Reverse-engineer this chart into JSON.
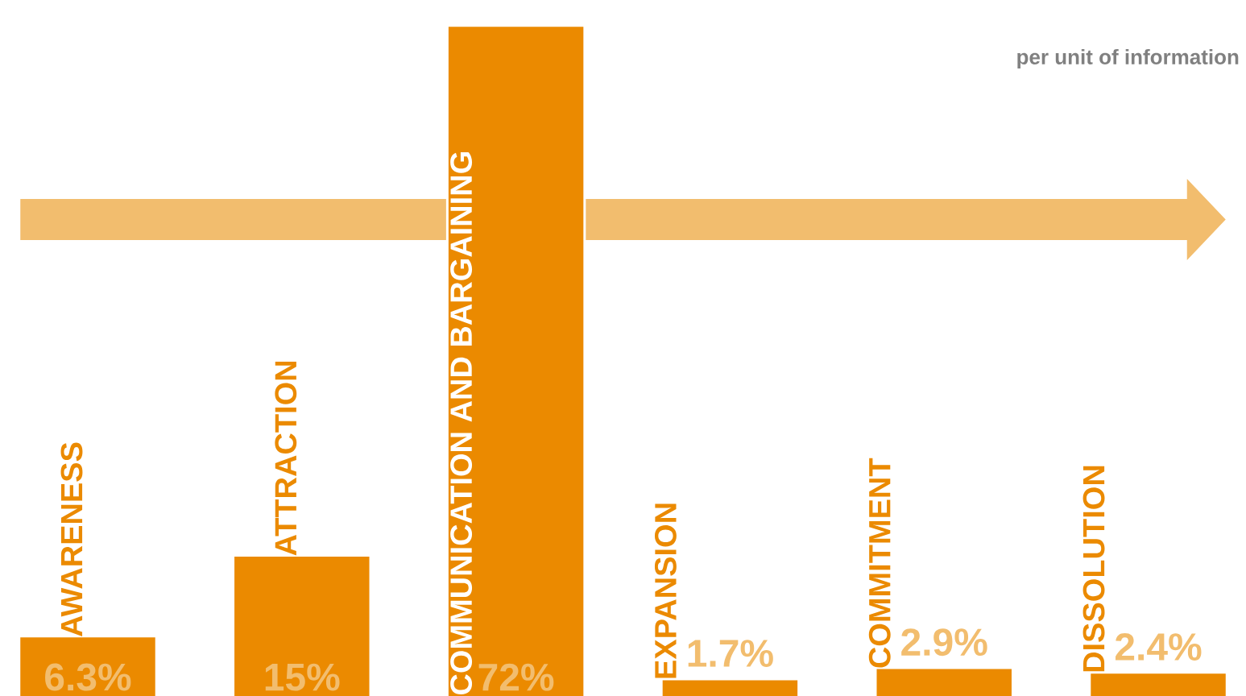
{
  "chart_data": {
    "type": "bar",
    "categories": [
      "AWARENESS",
      "ATTRACTION",
      "COMMUNICATION AND BARGAINING",
      "EXPANSION",
      "COMMITMENT",
      "DISSOLUTION"
    ],
    "values": [
      6.3,
      15,
      72,
      1.7,
      2.9,
      2.4
    ],
    "value_labels": [
      "6.3%",
      "15%",
      "72%",
      "1.7%",
      "2.9%",
      "2.4%"
    ],
    "color": "#eb8a00",
    "annotations": [
      "per unit of information"
    ]
  }
}
